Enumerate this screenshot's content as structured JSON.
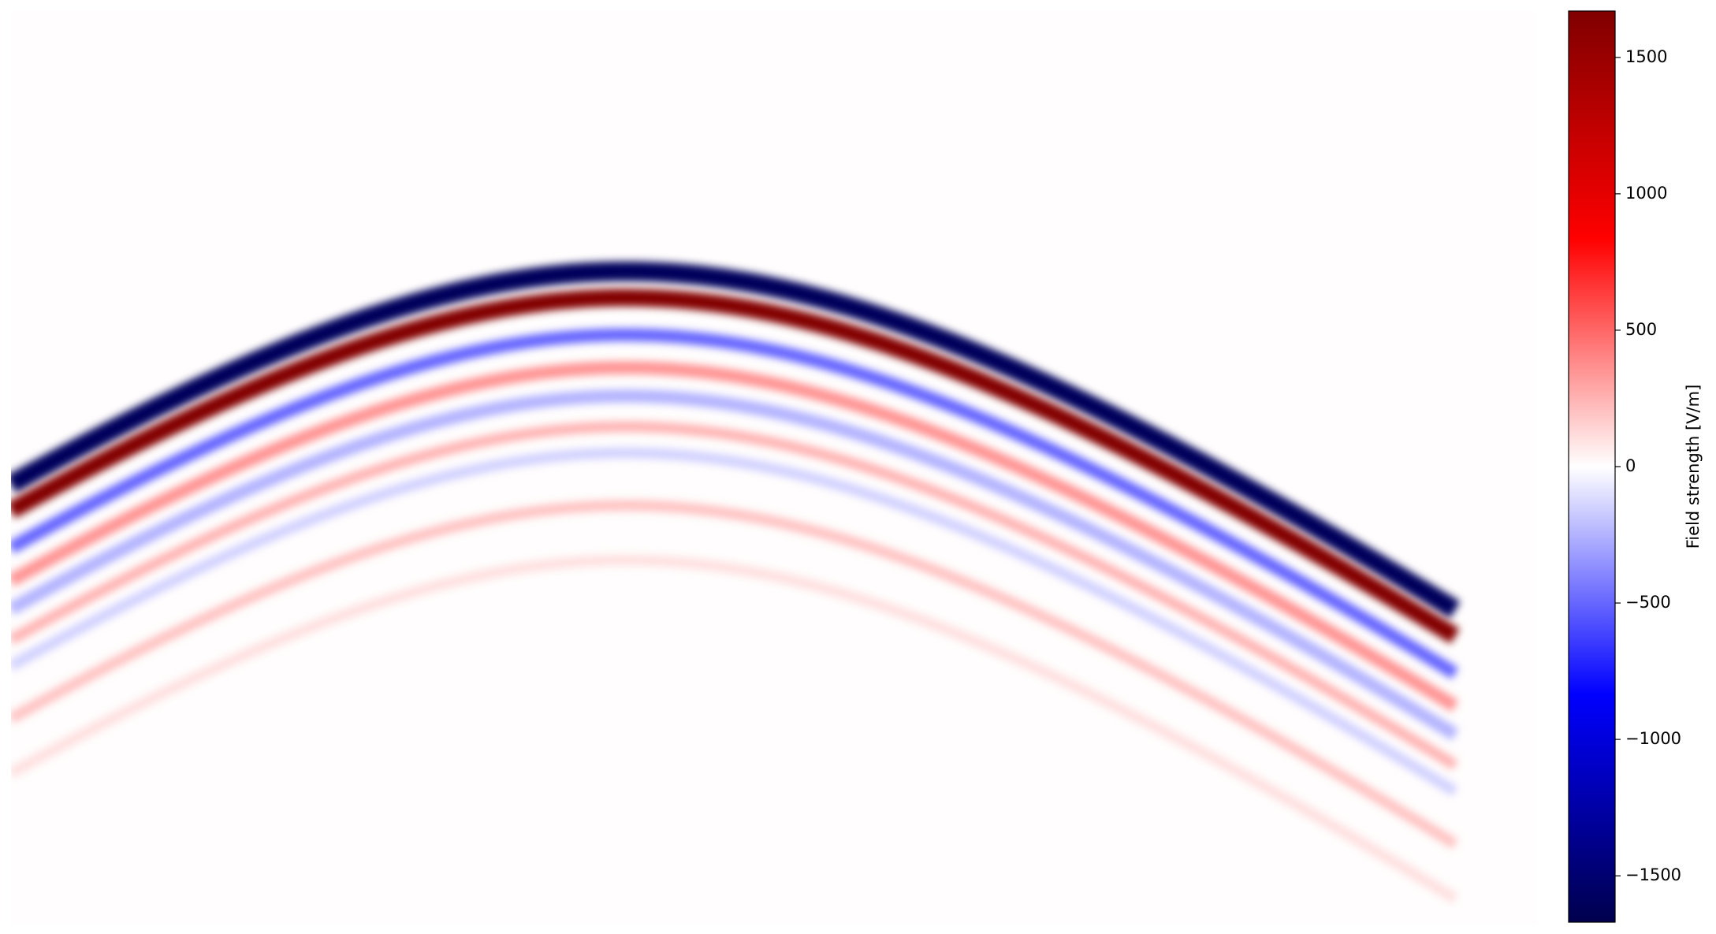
{
  "chart_data": {
    "type": "heatmap",
    "colormap": "seismic",
    "values": [
      400,
      -450,
      -500,
      650,
      -120,
      -1600,
      1650,
      -500,
      350,
      -250,
      250,
      -150,
      200,
      100
    ],
    "colorbar": {
      "label": "Field strength [V/m]",
      "clim": [
        -1670,
        1670
      ],
      "ticks": [
        {
          "value": -1500,
          "label": "−1500"
        },
        {
          "value": -1000,
          "label": "−1000"
        },
        {
          "value": -500,
          "label": "−500"
        },
        0,
        500,
        1000,
        1500
      ]
    }
  }
}
